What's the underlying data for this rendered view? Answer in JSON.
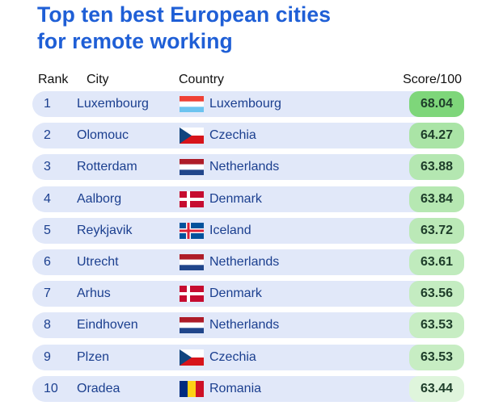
{
  "title_line1": "Top ten best European cities",
  "title_line2": "for remote working",
  "headers": {
    "rank": "Rank",
    "city": "City",
    "country": "Country",
    "score": "Score/100"
  },
  "colors": {
    "title": "#1f5fd6",
    "row_bg": "#e1e8f9",
    "score_high": "#7ed67a",
    "score_low": "#dff5dc"
  },
  "chart_data": {
    "type": "table",
    "columns": [
      "Rank",
      "City",
      "Country",
      "Score/100"
    ],
    "rows": [
      {
        "rank": "1",
        "city": "Luxembourg",
        "country": "Luxembourg",
        "flag": "luxembourg-flag-icon",
        "score": "68.04"
      },
      {
        "rank": "2",
        "city": "Olomouc",
        "country": "Czechia",
        "flag": "czechia-flag-icon",
        "score": "64.27"
      },
      {
        "rank": "3",
        "city": "Rotterdam",
        "country": "Netherlands",
        "flag": "netherlands-flag-icon",
        "score": "63.88"
      },
      {
        "rank": "4",
        "city": "Aalborg",
        "country": "Denmark",
        "flag": "denmark-flag-icon",
        "score": "63.84"
      },
      {
        "rank": "5",
        "city": "Reykjavik",
        "country": "Iceland",
        "flag": "iceland-flag-icon",
        "score": "63.72"
      },
      {
        "rank": "6",
        "city": "Utrecht",
        "country": "Netherlands",
        "flag": "netherlands-flag-icon",
        "score": "63.61"
      },
      {
        "rank": "7",
        "city": "Arhus",
        "country": "Denmark",
        "flag": "denmark-flag-icon",
        "score": "63.56"
      },
      {
        "rank": "8",
        "city": "Eindhoven",
        "country": "Netherlands",
        "flag": "netherlands-flag-icon",
        "score": "63.53"
      },
      {
        "rank": "9",
        "city": "Plzen",
        "country": "Czechia",
        "flag": "czechia-flag-icon",
        "score": "63.53"
      },
      {
        "rank": "10",
        "city": "Oradea",
        "country": "Romania",
        "flag": "romania-flag-icon",
        "score": "63.44"
      }
    ]
  }
}
